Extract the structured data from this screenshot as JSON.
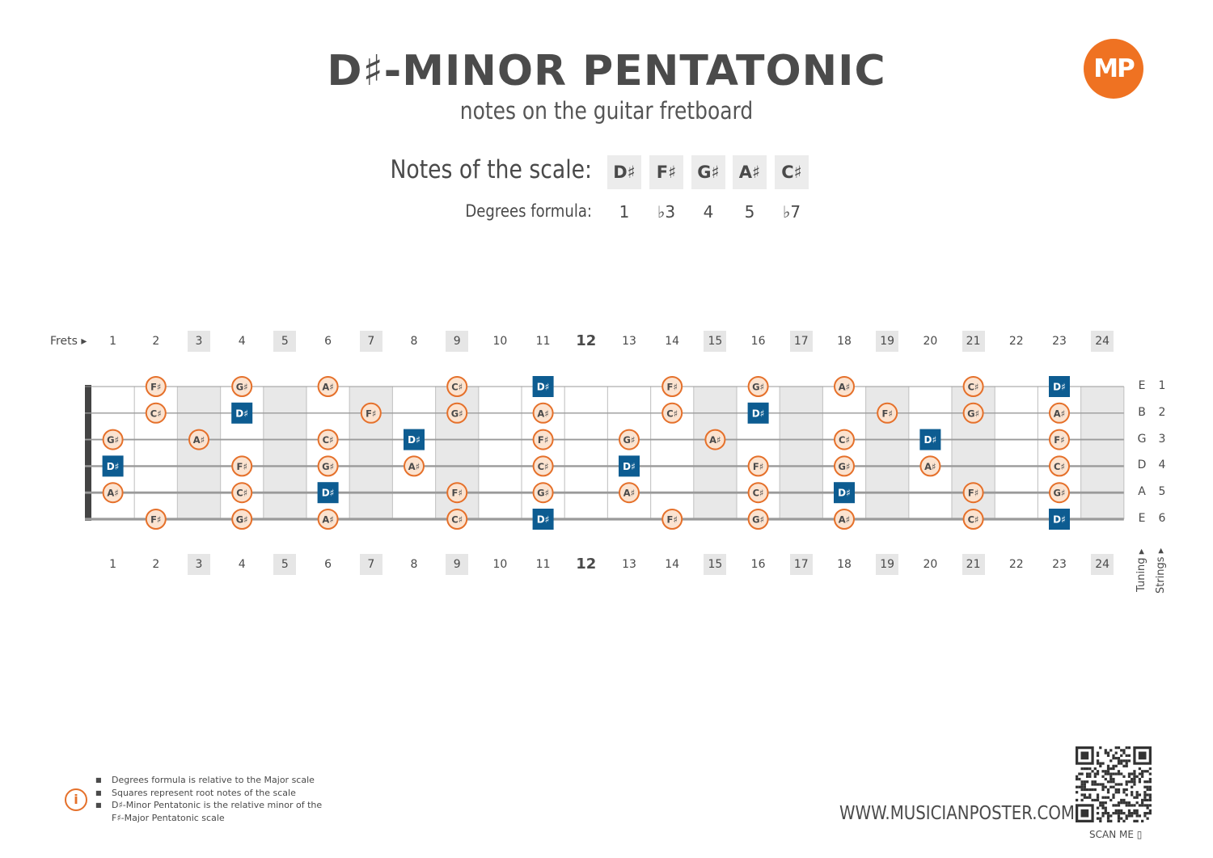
{
  "header": {
    "title": "D♯-MINOR PENTATONIC",
    "subtitle": "notes on the guitar fretboard",
    "logo_text": "MP"
  },
  "scale": {
    "label": "Notes of the scale:",
    "notes": [
      "D♯",
      "F♯",
      "G♯",
      "A♯",
      "C♯"
    ],
    "formula_label": "Degrees formula:",
    "degrees": [
      "1",
      "♭3",
      "4",
      "5",
      "♭7"
    ]
  },
  "fretboard": {
    "frets_label": "Frets",
    "fret_numbers": [
      "1",
      "2",
      "3",
      "4",
      "5",
      "6",
      "7",
      "8",
      "9",
      "10",
      "11",
      "12",
      "13",
      "14",
      "15",
      "16",
      "17",
      "18",
      "19",
      "20",
      "21",
      "22",
      "23",
      "24"
    ],
    "shaded_frets": [
      3,
      5,
      7,
      9,
      15,
      17,
      19,
      21,
      24
    ],
    "bold_frets": [
      12
    ],
    "tuning": [
      "E",
      "B",
      "G",
      "D",
      "A",
      "E"
    ],
    "string_numbers": [
      "1",
      "2",
      "3",
      "4",
      "5",
      "6"
    ],
    "tuning_label": "Tuning",
    "strings_label": "Strings",
    "root_note": "D♯",
    "strings": [
      [
        "",
        "F♯",
        "",
        "G♯",
        "",
        "A♯",
        "",
        "",
        "C♯",
        "",
        "D♯",
        "",
        "",
        "F♯",
        "",
        "G♯",
        "",
        "A♯",
        "",
        "",
        "C♯",
        "",
        "D♯",
        ""
      ],
      [
        "",
        "C♯",
        "",
        "D♯",
        "",
        "",
        "F♯",
        "",
        "G♯",
        "",
        "A♯",
        "",
        "",
        "C♯",
        "",
        "D♯",
        "",
        "",
        "F♯",
        "",
        "G♯",
        "",
        "A♯",
        ""
      ],
      [
        "G♯",
        "",
        "A♯",
        "",
        "",
        "C♯",
        "",
        "D♯",
        "",
        "",
        "F♯",
        "",
        "G♯",
        "",
        "A♯",
        "",
        "",
        "C♯",
        "",
        "D♯",
        "",
        "",
        "F♯",
        ""
      ],
      [
        "D♯",
        "",
        "",
        "F♯",
        "",
        "G♯",
        "",
        "A♯",
        "",
        "",
        "C♯",
        "",
        "D♯",
        "",
        "",
        "F♯",
        "",
        "G♯",
        "",
        "A♯",
        "",
        "",
        "C♯",
        ""
      ],
      [
        "A♯",
        "",
        "",
        "C♯",
        "",
        "D♯",
        "",
        "",
        "F♯",
        "",
        "G♯",
        "",
        "A♯",
        "",
        "",
        "C♯",
        "",
        "D♯",
        "",
        "",
        "F♯",
        "",
        "G♯",
        ""
      ],
      [
        "",
        "F♯",
        "",
        "G♯",
        "",
        "A♯",
        "",
        "",
        "C♯",
        "",
        "D♯",
        "",
        "",
        "F♯",
        "",
        "G♯",
        "",
        "A♯",
        "",
        "",
        "C♯",
        "",
        "D♯",
        ""
      ]
    ]
  },
  "colors": {
    "accent": "#e5702a",
    "note_fill": "#fbe3d0",
    "root_fill": "#0d5c91",
    "fret_shade": "#e8e8e8",
    "string": "#9a9a9a"
  },
  "footer": {
    "notes": [
      "Degrees formula is relative to the Major scale",
      "Squares represent root notes of the scale",
      "D♯-Minor Pentatonic is the relative minor of the F♯-Major Pentatonic scale"
    ],
    "website": "WWW.MUSICIANPOSTER.COM",
    "scan_label": "SCAN ME"
  }
}
